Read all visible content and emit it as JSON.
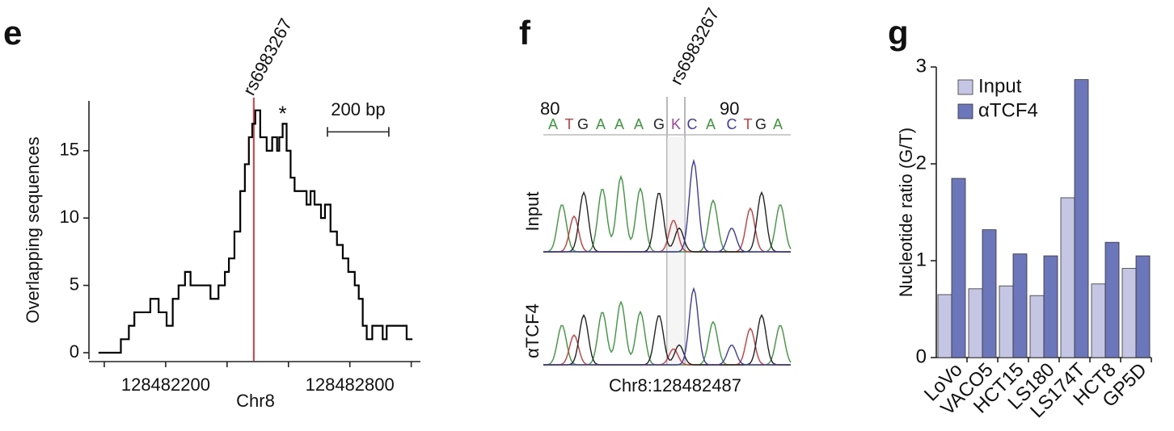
{
  "chart_data": [
    {
      "type": "line",
      "step": "post",
      "panel": "e",
      "xlabel": "Chr8",
      "ylabel": "Overlapping sequences",
      "color": "#000000",
      "x": [
        128481981,
        128482054,
        128482080,
        128482098,
        128482150,
        128482177,
        128482203,
        128482223,
        128482242,
        128482263,
        128482281,
        128482346,
        128482372,
        128482393,
        128482406,
        128482424,
        128482443,
        128482458,
        128482471,
        128482482,
        128482492,
        128482508,
        128482529,
        128482547,
        128482563,
        128482570,
        128482581,
        128482594,
        128482607,
        128482620,
        128482659,
        128482672,
        128482685,
        128482706,
        128482719,
        128482737,
        128482758,
        128482777,
        128482795,
        128482816,
        128482829,
        128482842,
        128482855,
        128482873,
        128482907,
        128482920,
        128482985,
        128483004
      ],
      "values": [
        0,
        1,
        2,
        3,
        4,
        3,
        2,
        4,
        5,
        6,
        5,
        4,
        5,
        6,
        7,
        9,
        12,
        14,
        16,
        17,
        18,
        16,
        15,
        16,
        15,
        16,
        17,
        15,
        13,
        12,
        11,
        12,
        11,
        10,
        11,
        9,
        8,
        7,
        6,
        5,
        4,
        2,
        1,
        2,
        1,
        2,
        1,
        1
      ],
      "xlim": [
        128481950,
        128483030
      ],
      "ylim": [
        0,
        18.7
      ],
      "xticks": [
        128482200,
        128482800
      ],
      "minor_xticks": [
        128482000,
        128482400,
        128482600,
        128483000
      ],
      "yticks": [
        0,
        5,
        10,
        15
      ],
      "annotations": [
        {
          "text": "rs6983267",
          "x": 128482487,
          "color": "#e0393e"
        },
        {
          "text": "*",
          "x": 128482581,
          "y": 17.4
        }
      ],
      "scale_bar": {
        "label": "200 bp",
        "x": 128482727,
        "length": 200,
        "y": 16.4
      }
    },
    {
      "type": "bar",
      "panel": "g",
      "ylabel": "Nucleotide ratio (G/T)",
      "categories": [
        "LoVo",
        "VACO5",
        "HCT15",
        "LS180",
        "LS174T",
        "HCT8",
        "GP5D"
      ],
      "series": [
        {
          "name": "Input",
          "color": "#c4c6e4",
          "values": [
            0.65,
            0.71,
            0.74,
            0.64,
            1.65,
            0.76,
            0.92
          ]
        },
        {
          "name": "αTCF4",
          "color": "#6b76bb",
          "values": [
            1.85,
            1.32,
            1.07,
            1.05,
            2.87,
            1.19,
            1.05
          ]
        }
      ],
      "ylim": [
        0,
        3
      ],
      "yticks": [
        0,
        1,
        2,
        3
      ],
      "legend": "upper left"
    }
  ],
  "sequence_panel": {
    "panel": "f",
    "snp": "rs6983267",
    "positions": [
      "80",
      "90"
    ],
    "bases": [
      "A",
      "T",
      "G",
      "A",
      "A",
      "A",
      "G",
      "K",
      "C",
      "A",
      "C",
      "T",
      "G",
      "A"
    ],
    "tracks": [
      "Input",
      "αTCF4"
    ],
    "xlabel": "Chr8:128482487"
  }
}
